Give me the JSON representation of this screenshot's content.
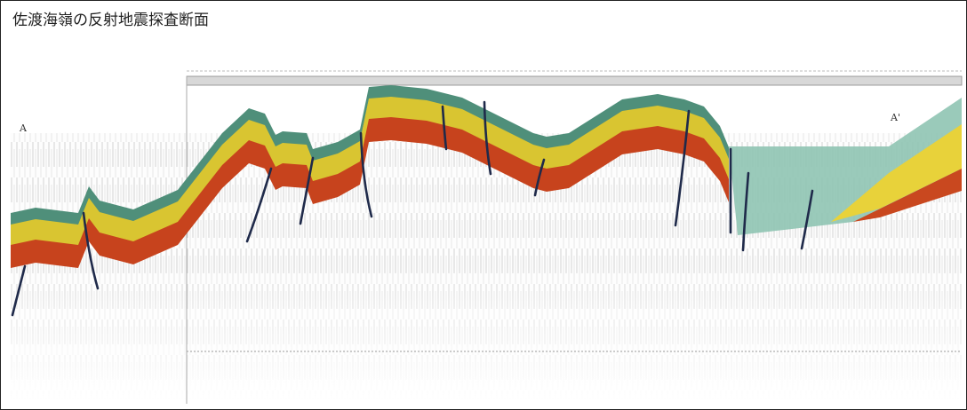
{
  "title": "佐渡海嶺の反射地震探査断面",
  "labels": {
    "start": "A",
    "end": "A'"
  }
}
